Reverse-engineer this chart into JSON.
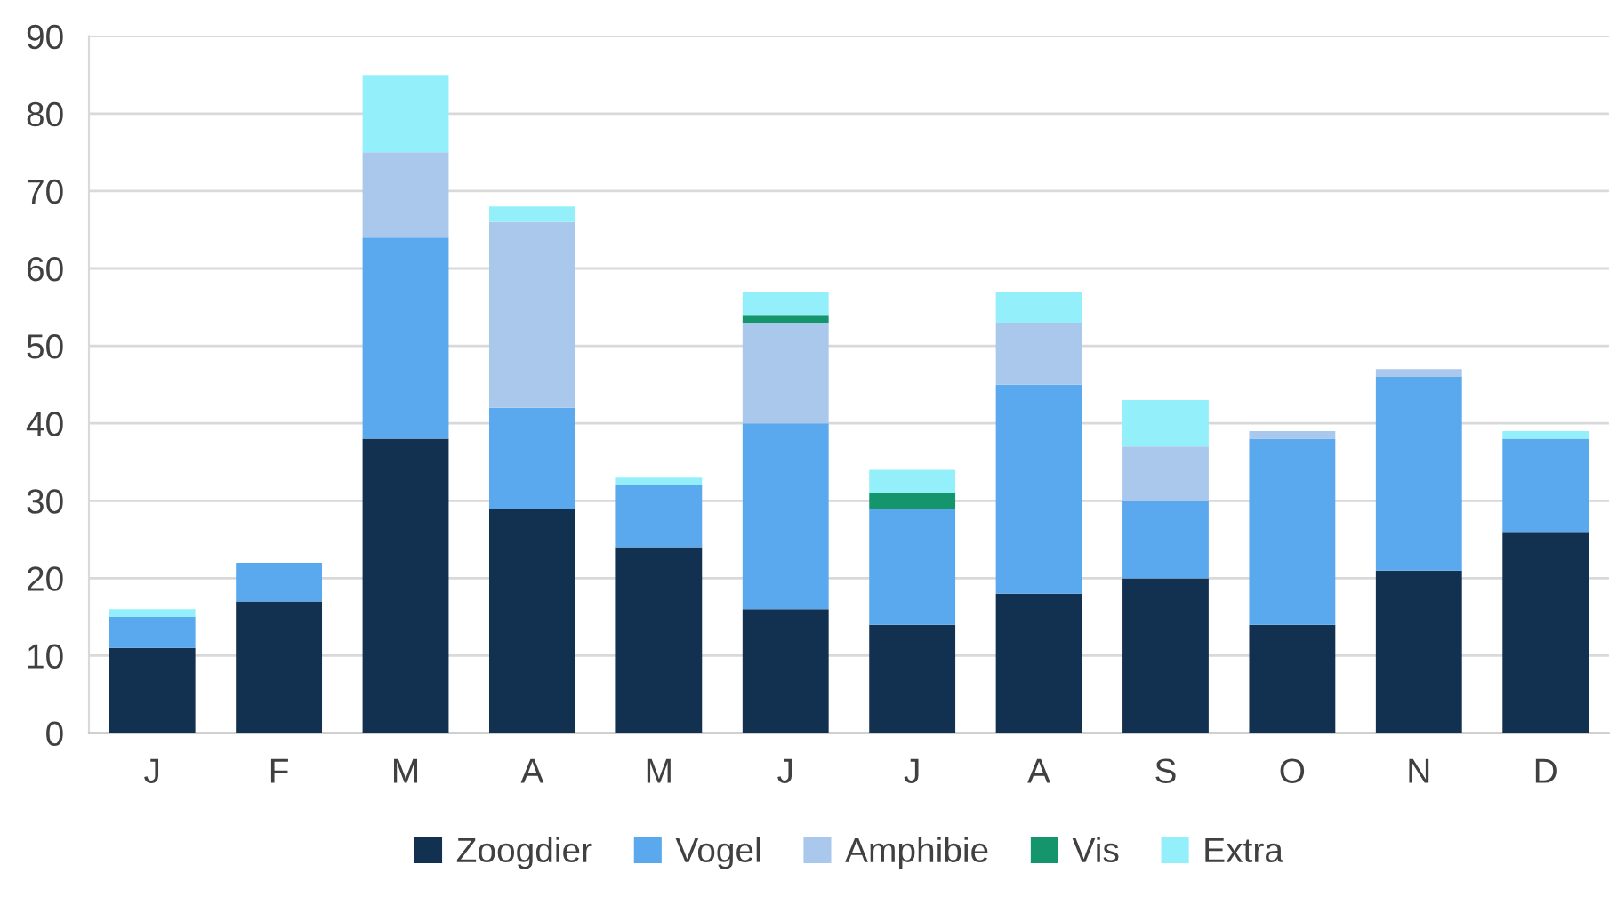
{
  "chart_data": {
    "type": "bar",
    "stacked": true,
    "categories": [
      "J",
      "F",
      "M",
      "A",
      "M",
      "J",
      "J",
      "A",
      "S",
      "O",
      "N",
      "D"
    ],
    "series": [
      {
        "name": "Zoogdier",
        "color": "#12304f",
        "values": [
          11,
          17,
          38,
          29,
          24,
          16,
          14,
          18,
          20,
          14,
          21,
          26
        ]
      },
      {
        "name": "Vogel",
        "color": "#5aa9ee",
        "values": [
          4,
          5,
          26,
          13,
          8,
          24,
          15,
          27,
          10,
          24,
          25,
          12
        ]
      },
      {
        "name": "Amphibie",
        "color": "#a9c8ec",
        "values": [
          0,
          0,
          11,
          24,
          0,
          13,
          0,
          8,
          7,
          1,
          1,
          0
        ]
      },
      {
        "name": "Vis",
        "color": "#15956b",
        "values": [
          0,
          0,
          0,
          0,
          0,
          1,
          2,
          0,
          0,
          0,
          0,
          0
        ]
      },
      {
        "name": "Extra",
        "color": "#93f0fa",
        "values": [
          1,
          0,
          10,
          2,
          1,
          3,
          3,
          4,
          6,
          0,
          0,
          1
        ]
      }
    ],
    "ylim": [
      0,
      90
    ],
    "yticks": [
      0,
      10,
      20,
      30,
      40,
      50,
      60,
      70,
      80,
      90
    ],
    "grid": "y",
    "legend": "bottom"
  }
}
